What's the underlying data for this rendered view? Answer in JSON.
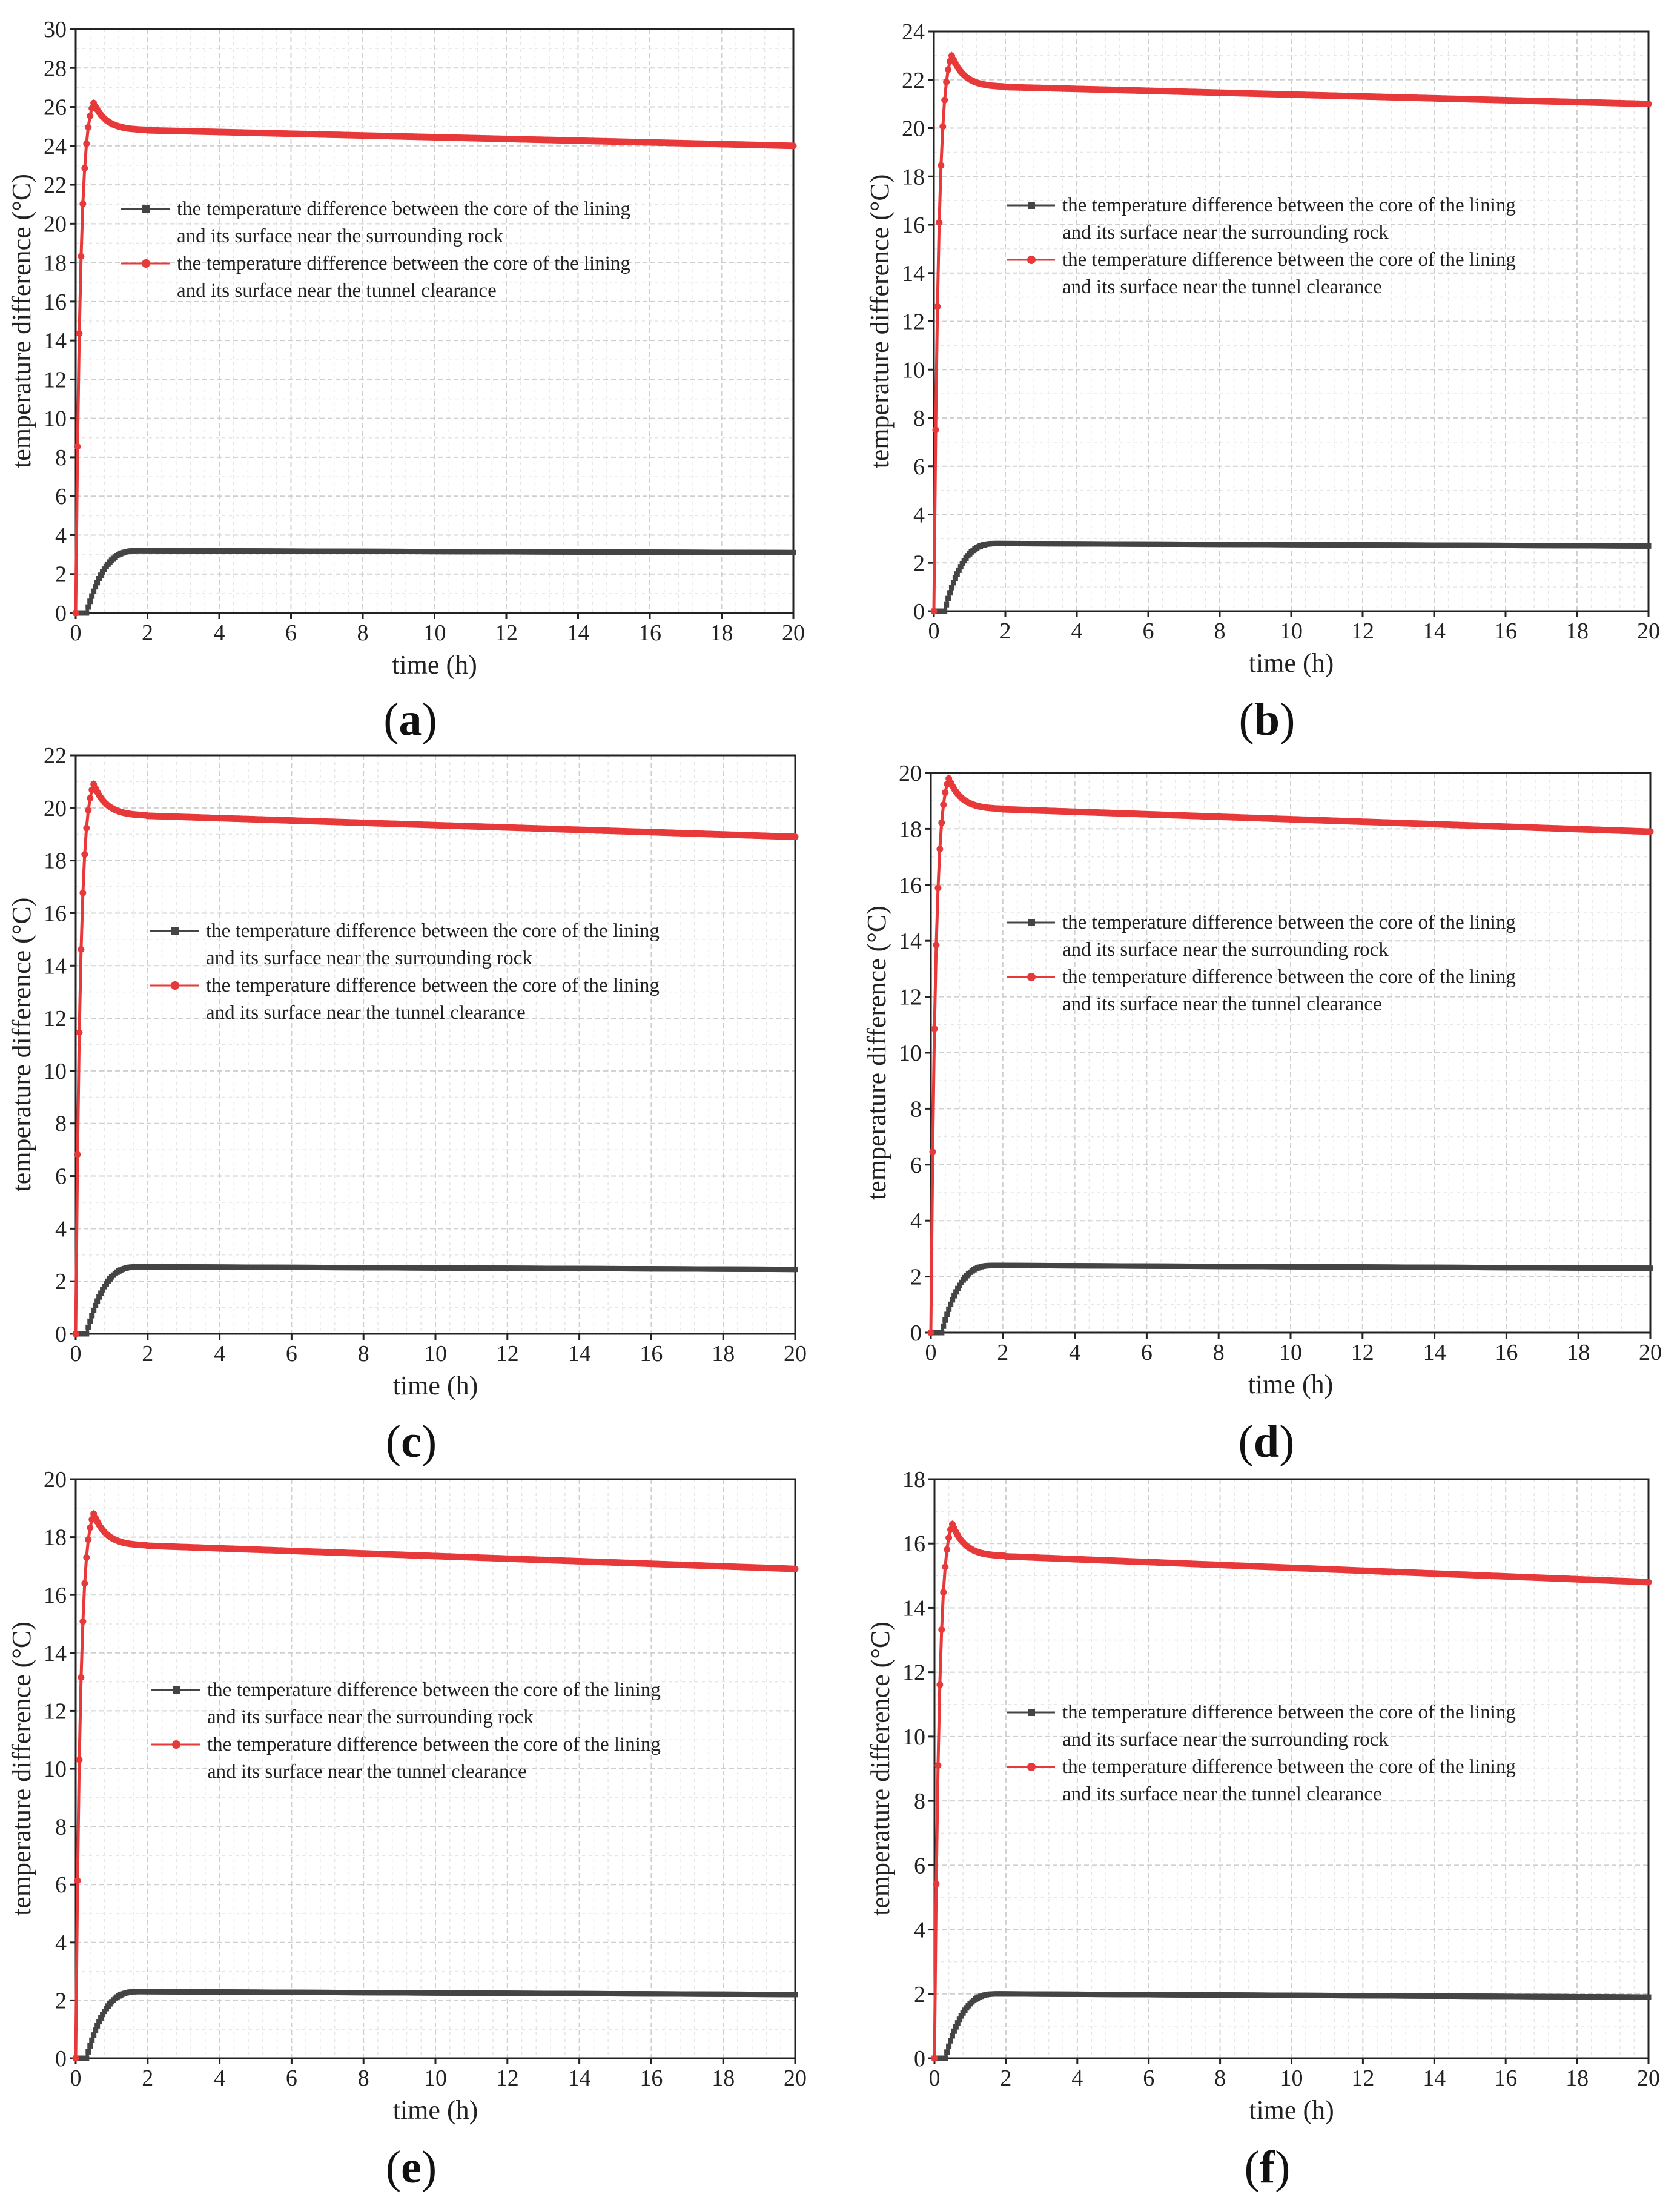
{
  "colors": {
    "red_series": "#e8393a",
    "black_series": "#444444",
    "grid": "#d6d6d6"
  },
  "legend": {
    "black_line1": "the temperature difference between the core of the lining",
    "black_line2": "and its surface near the surrounding rock",
    "red_line1": "the temperature difference between the core of the lining",
    "red_line2": "and its surface near the tunnel clearance"
  },
  "chart_data": [
    {
      "type": "line",
      "panel_label": "a",
      "xlabel": "time (h)",
      "ylabel": "temperature difference (°C)",
      "xlim": [
        0,
        20
      ],
      "ylim": [
        0,
        30
      ],
      "x_ticks": [
        0,
        2,
        4,
        6,
        8,
        10,
        12,
        14,
        16,
        18,
        20
      ],
      "y_ticks": [
        0,
        2,
        4,
        6,
        8,
        10,
        12,
        14,
        16,
        18,
        20,
        22,
        24,
        26,
        28,
        30
      ],
      "grid": true,
      "legend_position": "center-left",
      "series": [
        {
          "color": "red",
          "peak": 26.2,
          "plateau": 24.8,
          "end": 24.0
        },
        {
          "color": "black",
          "plateau": 3.2,
          "end": 3.1
        }
      ]
    },
    {
      "type": "line",
      "panel_label": "b",
      "xlabel": "time (h)",
      "ylabel": "temperature difference (°C)",
      "xlim": [
        0,
        20
      ],
      "ylim": [
        0,
        24
      ],
      "x_ticks": [
        0,
        2,
        4,
        6,
        8,
        10,
        12,
        14,
        16,
        18,
        20
      ],
      "y_ticks": [
        0,
        2,
        4,
        6,
        8,
        10,
        12,
        14,
        16,
        18,
        20,
        22,
        24
      ],
      "grid": true,
      "legend_position": "center-left",
      "series": [
        {
          "color": "red",
          "peak": 23.0,
          "plateau": 21.7,
          "end": 21.0
        },
        {
          "color": "black",
          "plateau": 2.8,
          "end": 2.7
        }
      ]
    },
    {
      "type": "line",
      "panel_label": "c",
      "xlabel": "time (h)",
      "ylabel": "temperature difference (°C)",
      "xlim": [
        0,
        20
      ],
      "ylim": [
        0,
        22
      ],
      "x_ticks": [
        0,
        2,
        4,
        6,
        8,
        10,
        12,
        14,
        16,
        18,
        20
      ],
      "y_ticks": [
        0,
        2,
        4,
        6,
        8,
        10,
        12,
        14,
        16,
        18,
        20,
        22
      ],
      "grid": true,
      "legend_position": "center-left",
      "series": [
        {
          "color": "red",
          "peak": 20.9,
          "plateau": 19.7,
          "end": 18.9
        },
        {
          "color": "black",
          "plateau": 2.55,
          "end": 2.45
        }
      ]
    },
    {
      "type": "line",
      "panel_label": "d",
      "xlabel": "time (h)",
      "ylabel": "temperature difference (°C)",
      "xlim": [
        0,
        20
      ],
      "ylim": [
        0,
        20
      ],
      "x_ticks": [
        0,
        2,
        4,
        6,
        8,
        10,
        12,
        14,
        16,
        18,
        20
      ],
      "y_ticks": [
        0,
        2,
        4,
        6,
        8,
        10,
        12,
        14,
        16,
        18,
        20
      ],
      "grid": true,
      "legend_position": "center-left",
      "series": [
        {
          "color": "red",
          "peak": 19.8,
          "plateau": 18.7,
          "end": 17.9
        },
        {
          "color": "black",
          "plateau": 2.4,
          "end": 2.3
        }
      ]
    },
    {
      "type": "line",
      "panel_label": "e",
      "xlabel": "time (h)",
      "ylabel": "temperature difference (°C)",
      "xlim": [
        0,
        20
      ],
      "ylim": [
        0,
        20
      ],
      "x_ticks": [
        0,
        2,
        4,
        6,
        8,
        10,
        12,
        14,
        16,
        18,
        20
      ],
      "y_ticks": [
        0,
        2,
        4,
        6,
        8,
        10,
        12,
        14,
        16,
        18,
        20
      ],
      "grid": true,
      "legend_position": "center-left",
      "series": [
        {
          "color": "red",
          "peak": 18.8,
          "plateau": 17.7,
          "end": 16.9
        },
        {
          "color": "black",
          "plateau": 2.3,
          "end": 2.2
        }
      ]
    },
    {
      "type": "line",
      "panel_label": "f",
      "xlabel": "time (h)",
      "ylabel": "temperature difference (°C)",
      "xlim": [
        0,
        20
      ],
      "ylim": [
        0,
        18
      ],
      "x_ticks": [
        0,
        2,
        4,
        6,
        8,
        10,
        12,
        14,
        16,
        18,
        20
      ],
      "y_ticks": [
        0,
        2,
        4,
        6,
        8,
        10,
        12,
        14,
        16,
        18
      ],
      "grid": true,
      "legend_position": "center-left",
      "series": [
        {
          "color": "red",
          "peak": 16.6,
          "plateau": 15.6,
          "end": 14.8
        },
        {
          "color": "black",
          "plateau": 2.0,
          "end": 1.9
        }
      ]
    }
  ]
}
